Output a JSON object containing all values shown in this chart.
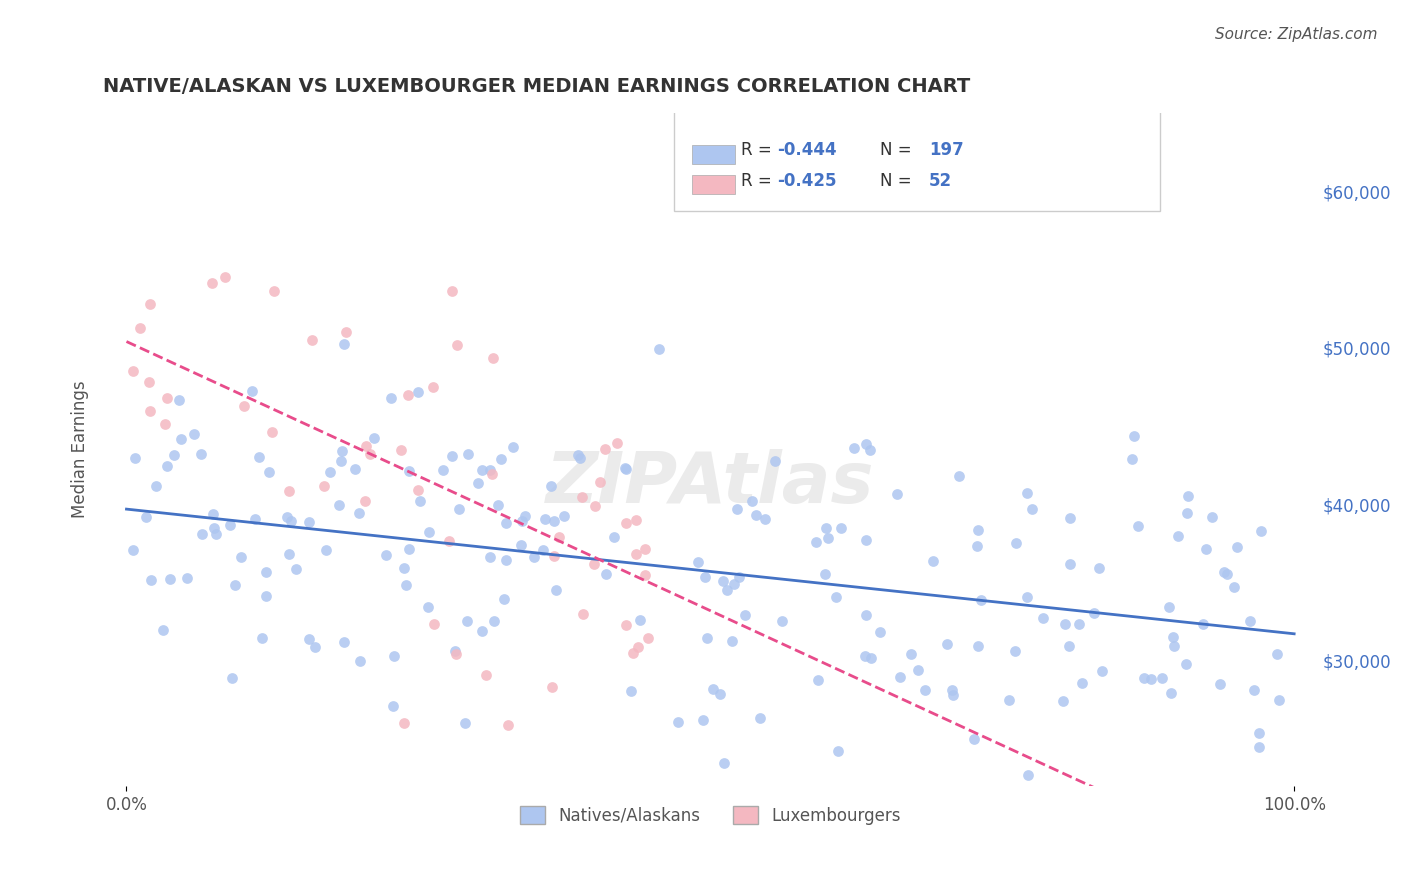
{
  "title": "NATIVE/ALASKAN VS LUXEMBOURGER MEDIAN EARNINGS CORRELATION CHART",
  "source": "Source: ZipAtlas.com",
  "xlabel": "",
  "ylabel": "Median Earnings",
  "watermark": "ZIPAtlas",
  "legend_entries": [
    {
      "label": "R = -0.444  N = 197",
      "color": "#aec6f0",
      "text_color": "#4472c4"
    },
    {
      "label": "R = -0.425  N =  52",
      "color": "#f4b8c1",
      "text_color": "#e84c8b"
    }
  ],
  "blue_scatter_color": "#aec6f0",
  "pink_scatter_color": "#f4b8c1",
  "blue_line_color": "#4472c4",
  "pink_line_color": "#e84c8b",
  "ytick_labels": [
    "$30,000",
    "$40,000",
    "$50,000",
    "$60,000"
  ],
  "ytick_values": [
    30000,
    40000,
    50000,
    60000
  ],
  "ylim": [
    22000,
    65000
  ],
  "xlim": [
    -2,
    102
  ],
  "xtick_labels": [
    "0.0%",
    "100.0%"
  ],
  "xtick_values": [
    0,
    100
  ],
  "blue_R": -0.444,
  "blue_N": 197,
  "pink_R": -0.425,
  "pink_N": 52,
  "background_color": "#ffffff",
  "grid_color": "#cccccc"
}
